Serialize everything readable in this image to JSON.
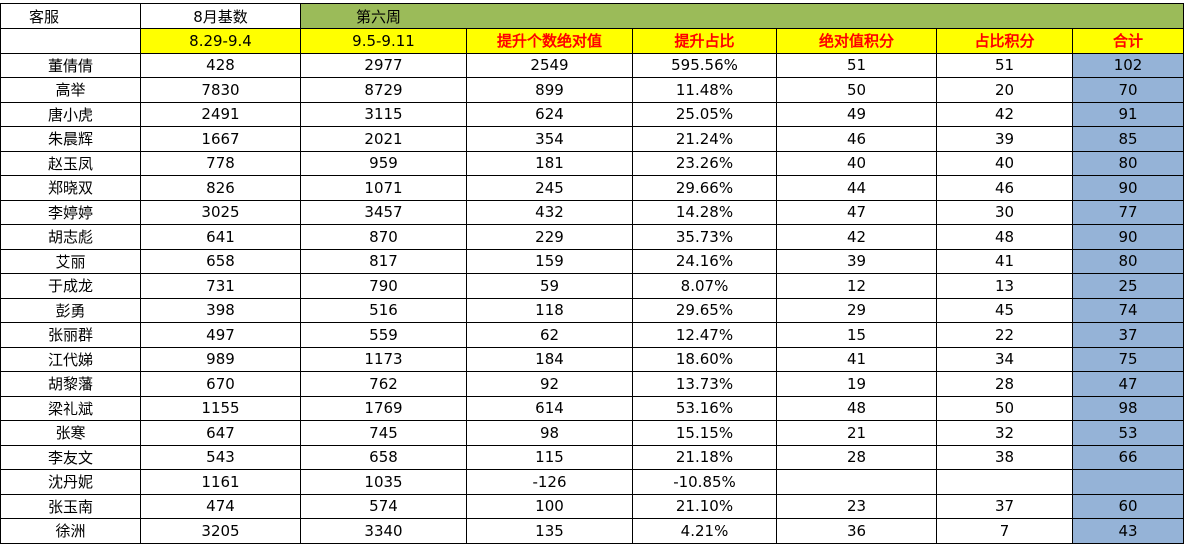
{
  "header": {
    "title_row": [
      "客服",
      "8月基数",
      "第六周"
    ],
    "sub_row": [
      "8.29-9.4",
      "9.5-9.11",
      "提升个数绝对值",
      "提升占比",
      "绝对值积分",
      "占比积分",
      "合计"
    ]
  },
  "table": {
    "rows": [
      [
        "董倩倩",
        428,
        2977,
        2549,
        "595.56%",
        51,
        51,
        102
      ],
      [
        "高举",
        7830,
        8729,
        899,
        "11.48%",
        50,
        20,
        70
      ],
      [
        "唐小虎",
        2491,
        3115,
        624,
        "25.05%",
        49,
        42,
        91
      ],
      [
        "朱晨辉",
        1667,
        2021,
        354,
        "21.24%",
        46,
        39,
        85
      ],
      [
        "赵玉凤",
        778,
        959,
        181,
        "23.26%",
        40,
        40,
        80
      ],
      [
        "郑晓双",
        826,
        1071,
        245,
        "29.66%",
        44,
        46,
        90
      ],
      [
        "李婷婷",
        3025,
        3457,
        432,
        "14.28%",
        47,
        30,
        77
      ],
      [
        "胡志彪",
        641,
        870,
        229,
        "35.73%",
        42,
        48,
        90
      ],
      [
        "艾丽",
        658,
        817,
        159,
        "24.16%",
        39,
        41,
        80
      ],
      [
        "于成龙",
        731,
        790,
        59,
        "8.07%",
        12,
        13,
        25
      ],
      [
        "彭勇",
        398,
        516,
        118,
        "29.65%",
        29,
        45,
        74
      ],
      [
        "张丽群",
        497,
        559,
        62,
        "12.47%",
        15,
        22,
        37
      ],
      [
        "江代娣",
        989,
        1173,
        184,
        "18.60%",
        41,
        34,
        75
      ],
      [
        "胡黎藩",
        670,
        762,
        92,
        "13.73%",
        19,
        28,
        47
      ],
      [
        "梁礼斌",
        1155,
        1769,
        614,
        "53.16%",
        48,
        50,
        98
      ],
      [
        "张寒",
        647,
        745,
        98,
        "15.15%",
        21,
        32,
        53
      ],
      [
        "李友文",
        543,
        658,
        115,
        "21.18%",
        28,
        38,
        66
      ],
      [
        "沈丹妮",
        1161,
        1035,
        -126,
        "-10.85%",
        null,
        null,
        null
      ],
      [
        "张玉南",
        474,
        574,
        100,
        "21.10%",
        23,
        37,
        60
      ],
      [
        "徐洲",
        3205,
        3340,
        135,
        "4.21%",
        36,
        7,
        43
      ]
    ]
  }
}
